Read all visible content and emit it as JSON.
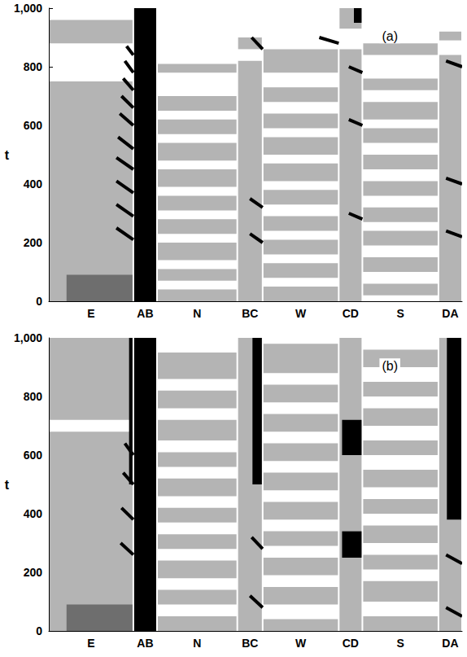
{
  "chart_data": [
    {
      "type": "space_time",
      "title": "(a)",
      "y_label": "t",
      "ylim": [
        0,
        1000
      ],
      "yticks": [
        0,
        200,
        400,
        600,
        800,
        1000
      ],
      "segments": [
        {
          "label": "E",
          "length": 100
        },
        {
          "label": "AB",
          "length": 28
        },
        {
          "label": "N",
          "length": 95
        },
        {
          "label": "BC",
          "length": 30
        },
        {
          "label": "W",
          "length": 90
        },
        {
          "label": "CD",
          "length": 28
        },
        {
          "label": "S",
          "length": 90
        },
        {
          "label": "DA",
          "length": 28
        }
      ],
      "regions": [
        {
          "color": "#b4b4b4",
          "rects": [
            [
              0,
              100,
              0,
              750
            ],
            [
              0,
              100,
              880,
              960
            ],
            [
              128,
              223,
              0,
              40
            ],
            [
              128,
              223,
              70,
              110
            ],
            [
              128,
              223,
              140,
              200
            ],
            [
              128,
              223,
              230,
              280
            ],
            [
              128,
              223,
              310,
              360
            ],
            [
              128,
              223,
              390,
              450
            ],
            [
              128,
              223,
              480,
              540
            ],
            [
              128,
              223,
              570,
              620
            ],
            [
              128,
              223,
              650,
              700
            ],
            [
              128,
              223,
              780,
              810
            ],
            [
              223,
              253,
              0,
              820
            ],
            [
              223,
              253,
              860,
              900
            ],
            [
              253,
              343,
              0,
              50
            ],
            [
              253,
              343,
              80,
              130
            ],
            [
              253,
              343,
              160,
              210
            ],
            [
              253,
              343,
              240,
              290
            ],
            [
              253,
              343,
              330,
              380
            ],
            [
              253,
              343,
              410,
              470
            ],
            [
              253,
              343,
              500,
              560
            ],
            [
              253,
              343,
              590,
              640
            ],
            [
              253,
              343,
              680,
              730
            ],
            [
              253,
              343,
              780,
              860
            ],
            [
              343,
              371,
              0,
              860
            ],
            [
              343,
              371,
              930,
              1000
            ],
            [
              371,
              461,
              20,
              60
            ],
            [
              371,
              461,
              100,
              150
            ],
            [
              371,
              461,
              190,
              240
            ],
            [
              371,
              461,
              270,
              320
            ],
            [
              371,
              461,
              360,
              410
            ],
            [
              371,
              461,
              450,
              500
            ],
            [
              371,
              461,
              540,
              590
            ],
            [
              371,
              461,
              620,
              680
            ],
            [
              371,
              461,
              720,
              760
            ],
            [
              371,
              461,
              840,
              880
            ],
            [
              461,
              489,
              0,
              840
            ],
            [
              461,
              489,
              890,
              920
            ]
          ]
        },
        {
          "color": "#6e6e6e",
          "rects": [
            [
              20,
              100,
              0,
              90
            ]
          ]
        },
        {
          "color": "#000000",
          "rects": [
            [
              100,
              128,
              0,
              1000
            ],
            [
              360,
              371,
              950,
              1000
            ]
          ]
        }
      ],
      "fronts": {
        "color": "#000000",
        "lines": [
          [
            80,
            250,
            100,
            210
          ],
          [
            80,
            330,
            100,
            290
          ],
          [
            80,
            410,
            100,
            370
          ],
          [
            80,
            490,
            100,
            450
          ],
          [
            82,
            560,
            100,
            520
          ],
          [
            84,
            640,
            100,
            600
          ],
          [
            86,
            700,
            100,
            660
          ],
          [
            88,
            760,
            100,
            720
          ],
          [
            90,
            820,
            100,
            780
          ],
          [
            92,
            870,
            100,
            840
          ],
          [
            238,
            230,
            253,
            200
          ],
          [
            238,
            350,
            253,
            320
          ],
          [
            240,
            900,
            253,
            860
          ],
          [
            320,
            900,
            343,
            880
          ],
          [
            355,
            300,
            371,
            280
          ],
          [
            355,
            620,
            371,
            600
          ],
          [
            355,
            800,
            371,
            780
          ],
          [
            470,
            240,
            489,
            220
          ],
          [
            470,
            420,
            489,
            400
          ],
          [
            470,
            820,
            489,
            800
          ]
        ]
      }
    },
    {
      "type": "space_time",
      "title": "(b)",
      "y_label": "t",
      "ylim": [
        0,
        1000
      ],
      "yticks": [
        0,
        200,
        400,
        600,
        800,
        1000
      ],
      "segments": [
        {
          "label": "E",
          "length": 100
        },
        {
          "label": "AB",
          "length": 28
        },
        {
          "label": "N",
          "length": 95
        },
        {
          "label": "BC",
          "length": 30
        },
        {
          "label": "W",
          "length": 90
        },
        {
          "label": "CD",
          "length": 28
        },
        {
          "label": "S",
          "length": 90
        },
        {
          "label": "DA",
          "length": 28
        }
      ],
      "regions": [
        {
          "color": "#b4b4b4",
          "rects": [
            [
              0,
              100,
              0,
              680
            ],
            [
              0,
              100,
              720,
              1000
            ],
            [
              128,
              223,
              0,
              50
            ],
            [
              128,
              223,
              90,
              140
            ],
            [
              128,
              223,
              180,
              240
            ],
            [
              128,
              223,
              280,
              330
            ],
            [
              128,
              223,
              370,
              420
            ],
            [
              128,
              223,
              460,
              520
            ],
            [
              128,
              223,
              560,
              610
            ],
            [
              128,
              223,
              650,
              720
            ],
            [
              128,
              223,
              760,
              820
            ],
            [
              128,
              223,
              860,
              950
            ],
            [
              223,
              253,
              0,
              1000
            ],
            [
              253,
              343,
              0,
              40
            ],
            [
              253,
              343,
              90,
              150
            ],
            [
              253,
              343,
              190,
              250
            ],
            [
              253,
              343,
              290,
              340
            ],
            [
              253,
              343,
              380,
              440
            ],
            [
              253,
              343,
              480,
              540
            ],
            [
              253,
              343,
              580,
              640
            ],
            [
              253,
              343,
              680,
              740
            ],
            [
              253,
              343,
              780,
              840
            ],
            [
              253,
              343,
              880,
              980
            ],
            [
              343,
              371,
              0,
              1000
            ],
            [
              371,
              461,
              0,
              50
            ],
            [
              371,
              461,
              100,
              170
            ],
            [
              371,
              461,
              210,
              260
            ],
            [
              371,
              461,
              300,
              360
            ],
            [
              371,
              461,
              400,
              450
            ],
            [
              371,
              461,
              490,
              550
            ],
            [
              371,
              461,
              600,
              650
            ],
            [
              371,
              461,
              700,
              760
            ],
            [
              371,
              461,
              800,
              850
            ],
            [
              371,
              461,
              900,
              960
            ],
            [
              461,
              489,
              0,
              1000
            ]
          ]
        },
        {
          "color": "#6e6e6e",
          "rects": [
            [
              20,
              100,
              0,
              90
            ]
          ]
        },
        {
          "color": "#000000",
          "rects": [
            [
              100,
              128,
              0,
              1000
            ],
            [
              240,
              253,
              500,
              1000
            ],
            [
              346,
              371,
              600,
              720
            ],
            [
              346,
              371,
              250,
              340
            ],
            [
              470,
              489,
              380,
              1000
            ],
            [
              94,
              100,
              500,
              1000
            ]
          ]
        }
      ],
      "fronts": {
        "color": "#000000",
        "lines": [
          [
            85,
            300,
            100,
            260
          ],
          [
            86,
            420,
            100,
            380
          ],
          [
            88,
            540,
            100,
            500
          ],
          [
            90,
            640,
            100,
            600
          ],
          [
            238,
            120,
            253,
            80
          ],
          [
            240,
            320,
            253,
            280
          ],
          [
            470,
            80,
            489,
            50
          ],
          [
            470,
            260,
            489,
            230
          ]
        ]
      }
    }
  ]
}
